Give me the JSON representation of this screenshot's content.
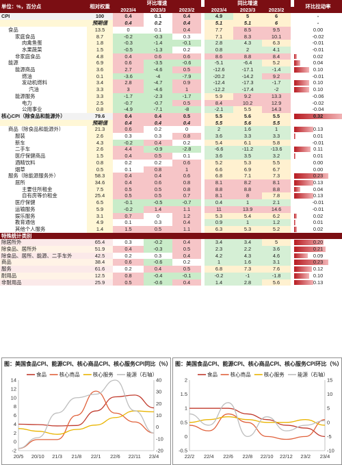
{
  "header": {
    "unit": "单位：%，百分点",
    "weight": "相对权重",
    "mom_group": "环比增速",
    "yoy_group": "同比增速",
    "contrib": "环比拉动率",
    "months": [
      "2023/4",
      "2023/3",
      "2023/2"
    ]
  },
  "rows": [
    {
      "label": "CPI",
      "indent": 0,
      "weight": "100",
      "mom": [
        "0.4",
        "0.1",
        "0.4"
      ],
      "yoy": [
        "4.9",
        "5",
        "6"
      ],
      "contrib": "-",
      "bold": true,
      "cbar": 0
    },
    {
      "label": "",
      "indent": 0,
      "weight": "预期值",
      "mom": [
        "0.4",
        "0.2",
        "0.4"
      ],
      "yoy": [
        "5.1",
        "5.1",
        "6"
      ],
      "contrib": "-",
      "fc": true,
      "cbar": 0
    },
    {
      "label": "食品",
      "indent": 1,
      "weight": "13.5",
      "mom": [
        "0",
        "0.1",
        "0.4"
      ],
      "yoy": [
        "7.7",
        "8.5",
        "9.5"
      ],
      "contrib": "0.00",
      "cbar": 0
    },
    {
      "label": "家庭食品",
      "indent": 2,
      "weight": "8.7",
      "mom": [
        "-0.2",
        "-0.3",
        "0.3"
      ],
      "yoy": [
        "7.1",
        "8.3",
        "10.1"
      ],
      "contrib": "-0.02",
      "cbar": 0
    },
    {
      "label": "肉禽鱼蛋",
      "indent": 3,
      "weight": "1.8",
      "mom": [
        "-0.3",
        "-1.4",
        "-0.1"
      ],
      "yoy": [
        "2.8",
        "4.3",
        "6.3"
      ],
      "contrib": "-0.01",
      "cbar": 0
    },
    {
      "label": "水果蔬菜",
      "indent": 3,
      "weight": "1.5",
      "mom": [
        "-0.5",
        "-1.3",
        "0.2"
      ],
      "yoy": [
        "0.8",
        "2",
        "4.1"
      ],
      "contrib": "-0.01",
      "cbar": 0
    },
    {
      "label": "非家庭食品",
      "indent": 2,
      "weight": "4.8",
      "mom": [
        "0.4",
        "0.6",
        "0.6"
      ],
      "yoy": [
        "8.6",
        "8.8",
        "8.4"
      ],
      "contrib": "0.02",
      "cbar": 0.06
    },
    {
      "label": "能源",
      "indent": 1,
      "weight": "6.9",
      "mom": [
        "0.6",
        "-3.5",
        "-0.6"
      ],
      "yoy": [
        "-5.1",
        "-6.4",
        "5.2"
      ],
      "contrib": "0.04",
      "cbar": 0.125
    },
    {
      "label": "能源商品",
      "indent": 2,
      "weight": "3.6",
      "mom": [
        "2.7",
        "-4.6",
        "0.5"
      ],
      "yoy": [
        "-12.6",
        "-17.1",
        "-1.4"
      ],
      "contrib": "0.10",
      "cbar": 0.31
    },
    {
      "label": "燃油",
      "indent": 3,
      "weight": "0.1",
      "mom": [
        "-3.6",
        "-4",
        "-7.9"
      ],
      "yoy": [
        "-20.2",
        "-14.2",
        "9.2"
      ],
      "contrib": "-0.01",
      "cbar": 0
    },
    {
      "label": "发动机燃料",
      "indent": 3,
      "weight": "3.4",
      "mom": [
        "2.8",
        "-4.7",
        "0.9"
      ],
      "yoy": [
        "-12.4",
        "-17.3",
        "-1.7"
      ],
      "contrib": "0.10",
      "cbar": 0.31
    },
    {
      "label": "汽油",
      "indent": 4,
      "weight": "3.3",
      "mom": [
        "3",
        "-4.6",
        "1"
      ],
      "yoy": [
        "-12.2",
        "-17.4",
        "-2"
      ],
      "contrib": "0.10",
      "cbar": 0.31
    },
    {
      "label": "能源服务",
      "indent": 2,
      "weight": "3.3",
      "mom": [
        "-1.7",
        "-2.3",
        "-1.7"
      ],
      "yoy": [
        "5.9",
        "9.2",
        "13.3"
      ],
      "contrib": "-0.06",
      "cbar": 0
    },
    {
      "label": "电力",
      "indent": 3,
      "weight": "2.5",
      "mom": [
        "-0.7",
        "-0.7",
        "0.5"
      ],
      "yoy": [
        "8.4",
        "10.2",
        "12.9"
      ],
      "contrib": "-0.02",
      "cbar": 0
    },
    {
      "label": "公用事业",
      "indent": 3,
      "weight": "0.8",
      "mom": [
        "-4.9",
        "-7.1",
        "-8"
      ],
      "yoy": [
        "-2.1",
        "5.5",
        "14.3"
      ],
      "contrib": "-0.04",
      "cbar": 0
    },
    {
      "label": "核心CPI（除食品和能源外）",
      "indent": 0,
      "weight": "79.6",
      "mom": [
        "0.4",
        "0.4",
        "0.5"
      ],
      "yoy": [
        "5.5",
        "5.6",
        "5.5"
      ],
      "contrib": "0.32",
      "bold": true,
      "cbar": 1
    },
    {
      "label": "",
      "indent": 0,
      "weight": "预期值",
      "mom": [
        "0.4",
        "0.4",
        "0.4"
      ],
      "yoy": [
        "5.5",
        "5.6",
        "5.5"
      ],
      "contrib": "",
      "fc": true,
      "cbar": 0
    },
    {
      "label": "商品（除食品和能源外）",
      "indent": 1,
      "weight": "21.3",
      "mom": [
        "0.6",
        "0.2",
        "0"
      ],
      "yoy": [
        "2",
        "1.6",
        "1"
      ],
      "contrib": "0.13",
      "cbar": 0.4
    },
    {
      "label": "服装",
      "indent": 2,
      "weight": "2.6",
      "mom": [
        "0.3",
        "0.3",
        "0.8"
      ],
      "yoy": [
        "3.6",
        "3.3",
        "3.3"
      ],
      "contrib": "0.01",
      "cbar": 0.03
    },
    {
      "label": "新车",
      "indent": 2,
      "weight": "4.3",
      "mom": [
        "-0.2",
        "0.4",
        "0.2"
      ],
      "yoy": [
        "5.4",
        "6.1",
        "5.8"
      ],
      "contrib": "-0.01",
      "cbar": 0
    },
    {
      "label": "二手车",
      "indent": 2,
      "weight": "2.6",
      "mom": [
        "4.4",
        "-0.9",
        "-2.8"
      ],
      "yoy": [
        "-6.6",
        "-11.2",
        "-13.6"
      ],
      "contrib": "0.11",
      "cbar": 0.34
    },
    {
      "label": "医疗保健商品",
      "indent": 2,
      "weight": "1.5",
      "mom": [
        "0.4",
        "0.5",
        "0.1"
      ],
      "yoy": [
        "3.6",
        "3.5",
        "3.2"
      ],
      "contrib": "0.01",
      "cbar": 0.03
    },
    {
      "label": "酒精饮料",
      "indent": 2,
      "weight": "0.8",
      "mom": [
        "0.2",
        "0.2",
        "0.6"
      ],
      "yoy": [
        "5.2",
        "5.3",
        "5.5"
      ],
      "contrib": "0.00",
      "cbar": 0
    },
    {
      "label": "烟草",
      "indent": 2,
      "weight": "0.5",
      "mom": [
        "0.1",
        "0.8",
        "1"
      ],
      "yoy": [
        "6.6",
        "6.9",
        "6.7"
      ],
      "contrib": "0.00",
      "cbar": 0
    },
    {
      "label": "服务（除能源服务外）",
      "indent": 1,
      "weight": "58.3",
      "mom": [
        "0.4",
        "0.4",
        "0.6"
      ],
      "yoy": [
        "6.8",
        "7.1",
        "7.3"
      ],
      "contrib": "0.23",
      "cbar": 0.72
    },
    {
      "label": "居所",
      "indent": 2,
      "weight": "34.6",
      "mom": [
        "0.4",
        "0.6",
        "0.8"
      ],
      "yoy": [
        "8.1",
        "8.2",
        "8.1"
      ],
      "contrib": "0.13",
      "cbar": 0.4
    },
    {
      "label": "主要住所租金",
      "indent": 3,
      "weight": "7.5",
      "mom": [
        "0.5",
        "0.5",
        "0.8"
      ],
      "yoy": [
        "8.8",
        "8.8",
        "8.8"
      ],
      "contrib": "0.04",
      "cbar": 0.125
    },
    {
      "label": "自有房等价租金",
      "indent": 3,
      "weight": "25.4",
      "mom": [
        "0.5",
        "0.5",
        "0.7"
      ],
      "yoy": [
        "8.1",
        "8",
        "7.8"
      ],
      "contrib": "0.13",
      "cbar": 0.4
    },
    {
      "label": "医疗保健",
      "indent": 2,
      "weight": "6.5",
      "mom": [
        "-0.1",
        "-0.5",
        "-0.7"
      ],
      "yoy": [
        "0.4",
        "1",
        "2.1"
      ],
      "contrib": "-0.01",
      "cbar": 0
    },
    {
      "label": "运输服务",
      "indent": 2,
      "weight": "5.9",
      "mom": [
        "-0.2",
        "1.4",
        "1.1"
      ],
      "yoy": [
        "11",
        "13.9",
        "14.6"
      ],
      "contrib": "-0.01",
      "cbar": 0
    },
    {
      "label": "娱乐服务",
      "indent": 2,
      "weight": "3.1",
      "mom": [
        "0.7",
        "0",
        "1.2"
      ],
      "yoy": [
        "5.3",
        "5.4",
        "6.2"
      ],
      "contrib": "0.02",
      "cbar": 0.06
    },
    {
      "label": "教育通信",
      "indent": 2,
      "weight": "4.9",
      "mom": [
        "0.1",
        "0.3",
        "0.4"
      ],
      "yoy": [
        "0.9",
        "1",
        "1.2"
      ],
      "contrib": "0.01",
      "cbar": 0.03
    },
    {
      "label": "其他个人服务",
      "indent": 2,
      "weight": "1.4",
      "mom": [
        "1.5",
        "0.5",
        "1.1"
      ],
      "yoy": [
        "6.3",
        "5.3",
        "5.2"
      ],
      "contrib": "0.02",
      "cbar": 0.06
    }
  ],
  "special_title": "特殊统计类别",
  "special_rows": [
    {
      "label": "除居所外",
      "weight": "65.4",
      "mom": [
        "0.3",
        "-0.2",
        "0.4"
      ],
      "yoy": [
        "3.4",
        "3.4",
        "5"
      ],
      "contrib": "0.20",
      "cbar": 0.62
    },
    {
      "label": "除食品、居所外",
      "weight": "51.9",
      "mom": [
        "0.4",
        "-0.3",
        "0.5"
      ],
      "yoy": [
        "2.3",
        "2.2",
        "3.6"
      ],
      "contrib": "0.21",
      "cbar": 0.66
    },
    {
      "label": "除食品、居所、能源、二手车外",
      "weight": "42.5",
      "mom": [
        "0.2",
        "0.3",
        "0.4"
      ],
      "yoy": [
        "4.2",
        "4.3",
        "4.6"
      ],
      "contrib": "0.09",
      "cbar": 0.28
    },
    {
      "label": "商品",
      "weight": "38.4",
      "mom": [
        "0.6",
        "-0.6",
        "0.2"
      ],
      "yoy": [
        "1",
        "1.6",
        "3.1"
      ],
      "contrib": "0.23",
      "cbar": 0.72
    },
    {
      "label": "服务",
      "weight": "61.6",
      "mom": [
        "0.2",
        "0.4",
        "0.5"
      ],
      "yoy": [
        "6.8",
        "7.3",
        "7.6"
      ],
      "contrib": "0.12",
      "cbar": 0.37
    },
    {
      "label": "耐用品",
      "weight": "12.5",
      "mom": [
        "0.8",
        "-0.4",
        "-0.1"
      ],
      "yoy": [
        "-0.2",
        "-1",
        "-1.8"
      ],
      "contrib": "0.10",
      "cbar": 0.31
    },
    {
      "label": "非耐用品",
      "weight": "25.9",
      "mom": [
        "0.5",
        "-0.6",
        "0.4"
      ],
      "yoy": [
        "1.4",
        "2.8",
        "5.6"
      ],
      "contrib": "0.13",
      "cbar": 0.4
    }
  ],
  "left_chart": {
    "title": "图：美国食品CPI、能源CPI、核心商品CPI、核心服务CPI同比（%）",
    "legend": [
      "食品",
      "核心商品",
      "核心服务",
      "能源（右轴）"
    ],
    "x_ticks": [
      "20/5",
      "20/10",
      "21/3",
      "21/8",
      "22/1",
      "22/6",
      "22/11",
      "23/4"
    ],
    "y_left_ticks": [
      "14",
      "12",
      "10",
      "8",
      "6",
      "4",
      "2",
      "0",
      "-2"
    ],
    "y_right_ticks": [
      "40",
      "30",
      "20",
      "10",
      "0",
      "-10",
      "-20"
    ],
    "colors": {
      "food": "#c0392b",
      "goods": "#e0603a",
      "services": "#e9b400",
      "energy": "#bdbdbd"
    }
  },
  "right_chart": {
    "title": "图：美国食品CPI、能源CPI、核心商品CPI、核心服务CPI环比（%）",
    "legend": [
      "食品",
      "核心商品",
      "核心服务",
      "能源（右轴）"
    ],
    "x_ticks": [
      "22/2",
      "22/4",
      "22/6",
      "22/8",
      "22/10",
      "22/12",
      "23/2",
      "23/4"
    ],
    "y_left_ticks": [
      "2",
      "1.5",
      "1",
      "0.5",
      "0",
      "-0.5"
    ],
    "y_right_ticks": [
      "15",
      "10",
      "5",
      "0",
      "-5",
      "-10"
    ],
    "colors": {
      "food": "#c0392b",
      "goods": "#e0603a",
      "services": "#e9b400",
      "energy": "#bdbdbd"
    }
  },
  "chart_data": [
    {
      "type": "line",
      "title": "图：美国食品CPI、能源CPI、核心商品CPI、核心服务CPI同比（%）",
      "x": [
        "20/5",
        "20/10",
        "21/3",
        "21/8",
        "22/1",
        "22/6",
        "22/11",
        "23/4"
      ],
      "ylim": [
        -2,
        14
      ],
      "y2lim": [
        -20,
        40
      ],
      "series": [
        {
          "name": "食品",
          "axis": "left",
          "values": [
            4,
            3.9,
            3.6,
            3.7,
            7,
            10.2,
            10.6,
            7.7
          ]
        },
        {
          "name": "核心商品",
          "axis": "left",
          "values": [
            -1.5,
            0.5,
            0.5,
            6,
            11.5,
            6.5,
            4.5,
            2
          ]
        },
        {
          "name": "核心服务",
          "axis": "left",
          "values": [
            3,
            2.4,
            1.7,
            2.8,
            3.8,
            5.5,
            7,
            6.8
          ]
        },
        {
          "name": "能源（右轴）",
          "axis": "right",
          "values": [
            -18,
            -9,
            12,
            25,
            28,
            40,
            14,
            -5
          ]
        }
      ]
    },
    {
      "type": "line",
      "title": "图：美国食品CPI、能源CPI、核心商品CPI、核心服务CPI环比（%）",
      "x": [
        "22/2",
        "22/4",
        "22/6",
        "22/8",
        "22/10",
        "22/12",
        "23/2",
        "23/4"
      ],
      "ylim": [
        -0.5,
        2
      ],
      "y2lim": [
        -10,
        15
      ],
      "series": [
        {
          "name": "食品",
          "axis": "left",
          "values": [
            1,
            1,
            1,
            0.8,
            0.6,
            0.4,
            0.3,
            0
          ]
        },
        {
          "name": "核心商品",
          "axis": "left",
          "values": [
            0.4,
            0.2,
            0.8,
            0.5,
            0,
            -0.1,
            0,
            0.6
          ]
        },
        {
          "name": "核心服务",
          "axis": "left",
          "values": [
            0.5,
            0.6,
            0.7,
            0.6,
            0.5,
            0.5,
            0.6,
            0.4
          ]
        },
        {
          "name": "能源（右轴）",
          "axis": "right",
          "values": [
            3,
            -1,
            7,
            -5,
            2,
            -3,
            -1,
            0.6
          ]
        }
      ]
    }
  ]
}
